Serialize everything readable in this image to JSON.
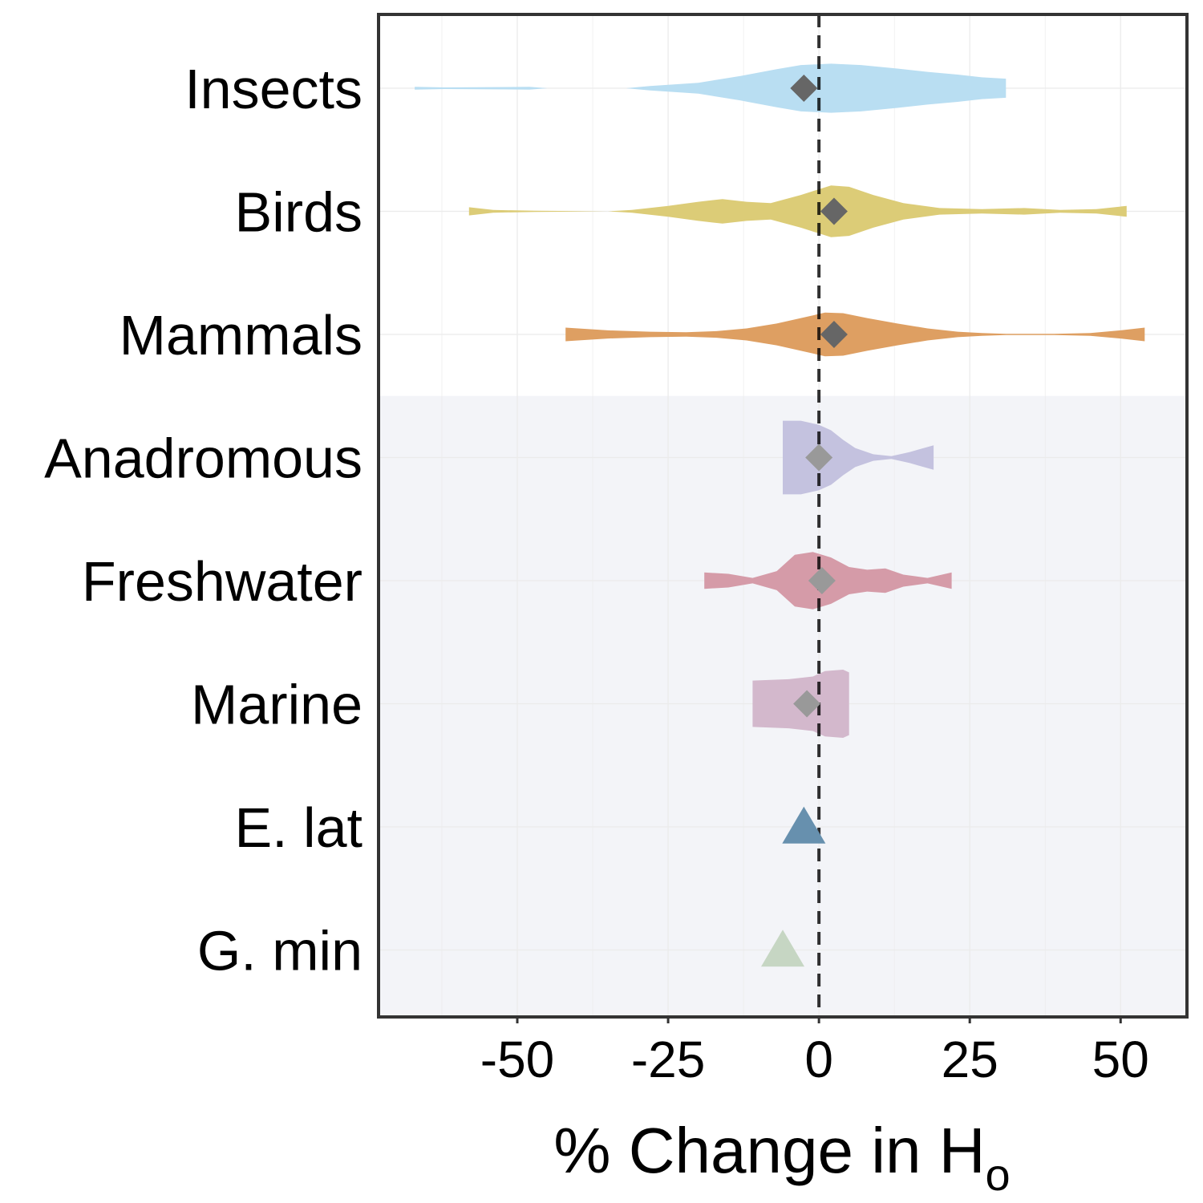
{
  "chart_data": {
    "type": "violin",
    "xlabel": "% Change in H",
    "xlabel_subscript": "o",
    "x_ticks": [
      -50,
      -25,
      0,
      25,
      50
    ],
    "xlim": [
      -73,
      61
    ],
    "reference_line_x": 0,
    "grid": true,
    "shaded_region": {
      "from_category": "Anadromous",
      "to_category": "G. min",
      "color": "#f3f4f8"
    },
    "categories": [
      "Insects",
      "Birds",
      "Mammals",
      "Anadromous",
      "Freshwater",
      "Marine",
      "E. lat",
      "G. min"
    ],
    "groups": [
      {
        "name": "Insects",
        "color": "#b9def2",
        "marker": "diamond",
        "marker_color": "#666666",
        "estimate": -2.5,
        "density": [
          [
            -67,
            0.05
          ],
          [
            -62,
            0.03
          ],
          [
            -48,
            0.05
          ],
          [
            -45,
            0.0
          ],
          [
            -32,
            0.0
          ],
          [
            -28,
            0.08
          ],
          [
            -20,
            0.2
          ],
          [
            -13,
            0.45
          ],
          [
            -7,
            0.7
          ],
          [
            -3,
            0.85
          ],
          [
            2,
            0.9
          ],
          [
            7,
            0.85
          ],
          [
            13,
            0.72
          ],
          [
            18,
            0.6
          ],
          [
            23,
            0.5
          ],
          [
            27,
            0.4
          ],
          [
            31,
            0.35
          ]
        ]
      },
      {
        "name": "Birds",
        "color": "#dccc77",
        "marker": "diamond",
        "marker_color": "#666666",
        "estimate": 2.5,
        "density": [
          [
            -58,
            0.15
          ],
          [
            -54,
            0.05
          ],
          [
            -47,
            0.02
          ],
          [
            -35,
            0.0
          ],
          [
            -31,
            0.05
          ],
          [
            -25,
            0.2
          ],
          [
            -20,
            0.35
          ],
          [
            -16,
            0.45
          ],
          [
            -12,
            0.35
          ],
          [
            -8,
            0.3
          ],
          [
            -3,
            0.6
          ],
          [
            2,
            0.95
          ],
          [
            5,
            0.9
          ],
          [
            9,
            0.6
          ],
          [
            14,
            0.3
          ],
          [
            20,
            0.12
          ],
          [
            27,
            0.08
          ],
          [
            34,
            0.12
          ],
          [
            40,
            0.05
          ],
          [
            46,
            0.08
          ],
          [
            51,
            0.2
          ]
        ]
      },
      {
        "name": "Mammals",
        "color": "#de9f62",
        "marker": "diamond",
        "marker_color": "#666666",
        "estimate": 2.5,
        "density": [
          [
            -42,
            0.25
          ],
          [
            -35,
            0.15
          ],
          [
            -28,
            0.1
          ],
          [
            -22,
            0.08
          ],
          [
            -17,
            0.12
          ],
          [
            -12,
            0.22
          ],
          [
            -7,
            0.4
          ],
          [
            -3,
            0.6
          ],
          [
            1,
            0.8
          ],
          [
            4,
            0.78
          ],
          [
            8,
            0.6
          ],
          [
            13,
            0.4
          ],
          [
            18,
            0.22
          ],
          [
            23,
            0.1
          ],
          [
            27,
            0.05
          ],
          [
            31,
            0.02
          ],
          [
            39,
            0.02
          ],
          [
            45,
            0.05
          ],
          [
            50,
            0.15
          ],
          [
            54,
            0.25
          ]
        ]
      },
      {
        "name": "Anadromous",
        "color": "#c4c2df",
        "marker": "diamond",
        "marker_color": "#999999",
        "estimate": 0,
        "density": [
          [
            -6,
            1.35
          ],
          [
            -3,
            1.35
          ],
          [
            0,
            1.2
          ],
          [
            2,
            1.0
          ],
          [
            4,
            0.65
          ],
          [
            6,
            0.35
          ],
          [
            9,
            0.12
          ],
          [
            12,
            0.05
          ],
          [
            15,
            0.2
          ],
          [
            19,
            0.45
          ]
        ]
      },
      {
        "name": "Freshwater",
        "color": "#d59ba8",
        "marker": "diamond",
        "marker_color": "#999999",
        "estimate": 0.5,
        "density": [
          [
            -19,
            0.3
          ],
          [
            -15,
            0.25
          ],
          [
            -11,
            0.1
          ],
          [
            -7,
            0.35
          ],
          [
            -4,
            0.95
          ],
          [
            -1,
            1.05
          ],
          [
            2,
            0.85
          ],
          [
            5,
            0.5
          ],
          [
            8,
            0.4
          ],
          [
            11,
            0.45
          ],
          [
            14,
            0.22
          ],
          [
            18,
            0.1
          ],
          [
            22,
            0.3
          ]
        ]
      },
      {
        "name": "Marine",
        "color": "#d3b8cc",
        "marker": "diamond",
        "marker_color": "#999999",
        "estimate": -2,
        "density": [
          [
            -11,
            0.85
          ],
          [
            -5,
            0.9
          ],
          [
            -1,
            1.0
          ],
          [
            1,
            1.2
          ],
          [
            4,
            1.25
          ],
          [
            5,
            1.15
          ]
        ]
      },
      {
        "name": "E. lat",
        "marker": "triangle",
        "marker_color": "#6790ae",
        "estimate": -2.5
      },
      {
        "name": "G. min",
        "marker": "triangle",
        "marker_color": "#c6d6c3",
        "estimate": -6
      }
    ]
  }
}
